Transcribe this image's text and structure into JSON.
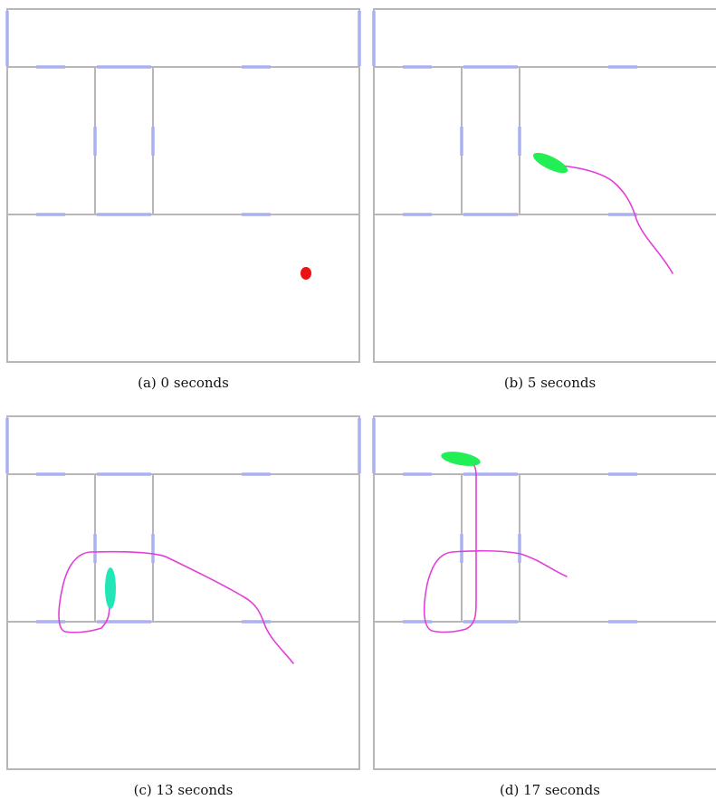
{
  "colors": {
    "wall": "#b7b7b7",
    "door": "#aab0f0",
    "trajectory": "#e23fd9",
    "estimate_start": "#ee1111",
    "estimate_green": "#22ee55",
    "estimate_cyan": "#22e6b8"
  },
  "panels": [
    {
      "caption": "(a) 0 seconds",
      "estimate_color": "#ee1111"
    },
    {
      "caption": "(b) 5 seconds",
      "estimate_color": "#22ee55"
    },
    {
      "caption": "(c) 13 seconds",
      "estimate_color": "#22e6b8"
    },
    {
      "caption": "(d) 17 seconds",
      "estimate_color": "#22ee55"
    }
  ]
}
